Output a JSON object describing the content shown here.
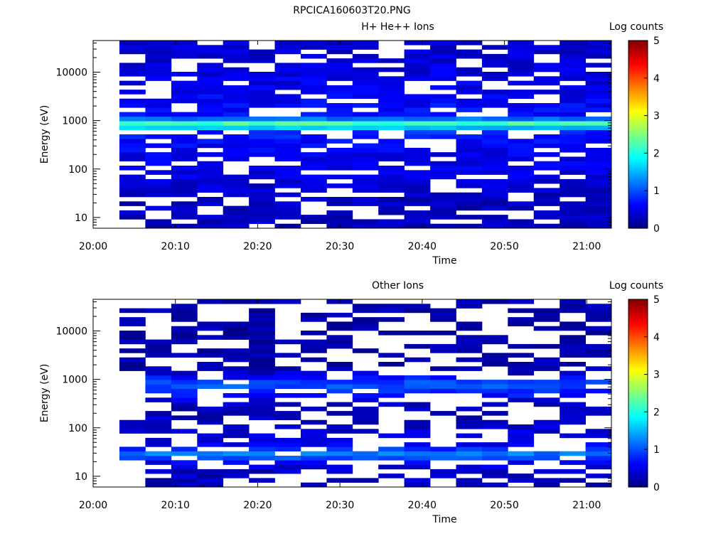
{
  "figure": {
    "title": "RPCICA160603T20.PNG",
    "background": "#ffffff"
  },
  "chart_data": [
    {
      "type": "heatmap",
      "title": "H+ He++ Ions",
      "xlabel": "Time",
      "ylabel": "Energy (eV)",
      "yscale": "log",
      "ylim": [
        6,
        45000
      ],
      "xlim": [
        "20:00",
        "21:03"
      ],
      "x_ticks": [
        "20:00",
        "20:10",
        "20:20",
        "20:30",
        "20:40",
        "20:50",
        "21:00"
      ],
      "y_ticks": [
        "10",
        "100",
        "1000",
        "10000"
      ],
      "colorbar": {
        "label": "Log counts",
        "min": 0,
        "max": 5,
        "ticks": [
          "0",
          "1",
          "2",
          "3",
          "4",
          "5"
        ]
      },
      "summary_profile": {
        "energy_eV": [
          12,
          25,
          45,
          80,
          150,
          300,
          600,
          850,
          1200,
          2500,
          5000,
          10000,
          20000,
          38000
        ],
        "typical_log_counts": [
          0.3,
          0.3,
          0.4,
          0.5,
          0.5,
          0.6,
          0.8,
          2.4,
          0.7,
          0.6,
          0.5,
          0.5,
          0.4,
          0.4
        ]
      }
    },
    {
      "type": "heatmap",
      "title": "Other Ions",
      "xlabel": "Time",
      "ylabel": "Energy (eV)",
      "yscale": "log",
      "ylim": [
        6,
        45000
      ],
      "xlim": [
        "20:00",
        "21:03"
      ],
      "x_ticks": [
        "20:00",
        "20:10",
        "20:20",
        "20:30",
        "20:40",
        "20:50",
        "21:00"
      ],
      "y_ticks": [
        "10",
        "100",
        "1000",
        "10000"
      ],
      "colorbar": {
        "label": "Log counts",
        "min": 0,
        "max": 5,
        "ticks": [
          "0",
          "1",
          "2",
          "3",
          "4",
          "5"
        ]
      },
      "summary_profile": {
        "energy_eV": [
          12,
          20,
          28,
          45,
          80,
          150,
          300,
          800,
          1500,
          3000,
          10000,
          30000
        ],
        "typical_log_counts": [
          0.3,
          0.6,
          1.3,
          0.5,
          0.4,
          0.3,
          0.3,
          1.1,
          0.2,
          0.2,
          0.2,
          0.2
        ]
      }
    }
  ]
}
